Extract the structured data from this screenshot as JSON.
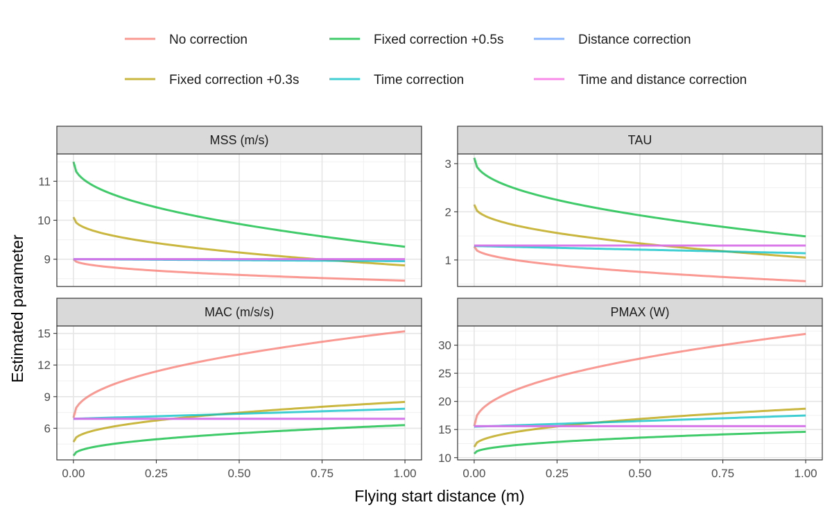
{
  "chart_data": {
    "type": "line",
    "xlabel": "Flying start distance (m)",
    "ylabel": "Estimated parameter",
    "legend_position": "top",
    "grid": true,
    "legend": [
      {
        "name": "No correction",
        "color": "#F8766D"
      },
      {
        "name": "Fixed correction +0.3s",
        "color": "#B79F00"
      },
      {
        "name": "Fixed correction +0.5s",
        "color": "#00BA38"
      },
      {
        "name": "Time correction",
        "color": "#00BFC4"
      },
      {
        "name": "Distance correction",
        "color": "#619CFF"
      },
      {
        "name": "Time and distance correction",
        "color": "#F564E3"
      }
    ],
    "x_ticks": [
      "0.00",
      "0.25",
      "0.50",
      "0.75",
      "1.00"
    ],
    "xlim": [
      0,
      1
    ],
    "panels": [
      {
        "title": "MSS (m/s)",
        "ylim": [
          8.3,
          11.7
        ],
        "y_ticks": [
          9,
          10,
          11
        ],
        "y_tick_labels": [
          "9",
          "10",
          "11"
        ],
        "series": [
          {
            "name": "No correction",
            "start": 9.0,
            "end": 8.45,
            "shape": "sqrt"
          },
          {
            "name": "Fixed correction +0.3s",
            "start": 10.08,
            "end": 8.84,
            "shape": "sqrt"
          },
          {
            "name": "Fixed correction +0.5s",
            "start": 11.5,
            "end": 9.32,
            "shape": "sqrt"
          },
          {
            "name": "Time correction",
            "start": 9.0,
            "end": 8.95,
            "shape": "linear"
          },
          {
            "name": "Distance correction",
            "start": 9.0,
            "end": 9.0,
            "shape": "linear"
          },
          {
            "name": "Time and distance correction",
            "start": 9.0,
            "end": 9.0,
            "shape": "linear"
          }
        ]
      },
      {
        "title": "TAU",
        "ylim": [
          0.45,
          3.2
        ],
        "y_ticks": [
          1,
          2,
          3
        ],
        "y_tick_labels": [
          "1",
          "2",
          "3"
        ],
        "series": [
          {
            "name": "No correction",
            "start": 1.28,
            "end": 0.56,
            "shape": "sqrt"
          },
          {
            "name": "Fixed correction +0.3s",
            "start": 2.15,
            "end": 1.05,
            "shape": "sqrt"
          },
          {
            "name": "Fixed correction +0.5s",
            "start": 3.12,
            "end": 1.49,
            "shape": "sqrt"
          },
          {
            "name": "Time correction",
            "start": 1.29,
            "end": 1.14,
            "shape": "linear"
          },
          {
            "name": "Distance correction",
            "start": 1.3,
            "end": 1.3,
            "shape": "linear"
          },
          {
            "name": "Time and distance correction",
            "start": 1.3,
            "end": 1.3,
            "shape": "linear"
          }
        ]
      },
      {
        "title": "MAC (m/s/s)",
        "ylim": [
          3.0,
          15.7
        ],
        "y_ticks": [
          6,
          9,
          12,
          15
        ],
        "y_tick_labels": [
          "6",
          "9",
          "12",
          "15"
        ],
        "series": [
          {
            "name": "No correction",
            "start": 7.0,
            "end": 15.2,
            "shape": "sqrt"
          },
          {
            "name": "Fixed correction +0.3s",
            "start": 4.7,
            "end": 8.5,
            "shape": "sqrt"
          },
          {
            "name": "Fixed correction +0.5s",
            "start": 3.4,
            "end": 6.3,
            "shape": "sqrt"
          },
          {
            "name": "Time correction",
            "start": 6.9,
            "end": 7.85,
            "shape": "linear"
          },
          {
            "name": "Distance correction",
            "start": 6.9,
            "end": 6.9,
            "shape": "linear"
          },
          {
            "name": "Time and distance correction",
            "start": 6.9,
            "end": 6.9,
            "shape": "linear"
          }
        ]
      },
      {
        "title": "PMAX (W)",
        "ylim": [
          9.6,
          33.4
        ],
        "y_ticks": [
          10,
          15,
          20,
          25,
          30
        ],
        "y_tick_labels": [
          "10",
          "15",
          "20",
          "25",
          "30"
        ],
        "series": [
          {
            "name": "No correction",
            "start": 15.6,
            "end": 32.0,
            "shape": "sqrt"
          },
          {
            "name": "Fixed correction +0.3s",
            "start": 11.9,
            "end": 18.7,
            "shape": "sqrt"
          },
          {
            "name": "Fixed correction +0.5s",
            "start": 10.7,
            "end": 14.6,
            "shape": "sqrt"
          },
          {
            "name": "Time correction",
            "start": 15.5,
            "end": 17.5,
            "shape": "linear"
          },
          {
            "name": "Distance correction",
            "start": 15.6,
            "end": 15.6,
            "shape": "linear"
          },
          {
            "name": "Time and distance correction",
            "start": 15.6,
            "end": 15.6,
            "shape": "linear"
          }
        ]
      }
    ]
  }
}
